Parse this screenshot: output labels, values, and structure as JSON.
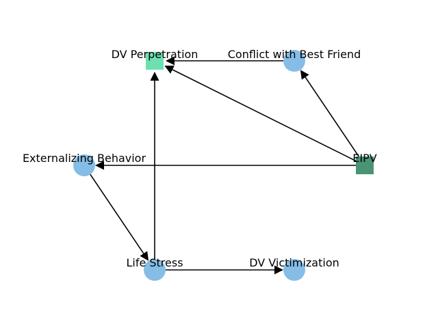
{
  "diagram": {
    "colors": {
      "circle_node": "#85bde6",
      "square_node_dv_perpetration": "#6ee0b0",
      "square_node_eipv": "#4a9475",
      "edge": "#000000",
      "label": "#000000"
    },
    "nodes": [
      {
        "id": "dv_perpetration",
        "label": "DV Perpetration",
        "shape": "square"
      },
      {
        "id": "conflict_best_friend",
        "label": "Conflict with Best Friend",
        "shape": "circle"
      },
      {
        "id": "externalizing_behavior",
        "label": "Externalizing Behavior",
        "shape": "circle"
      },
      {
        "id": "eipv",
        "label": "EIPV",
        "shape": "square"
      },
      {
        "id": "life_stress",
        "label": "Life Stress",
        "shape": "circle"
      },
      {
        "id": "dv_victimization",
        "label": "DV Victimization",
        "shape": "circle"
      }
    ],
    "edges": [
      {
        "from": "conflict_best_friend",
        "to": "dv_perpetration"
      },
      {
        "from": "eipv",
        "to": "dv_perpetration"
      },
      {
        "from": "eipv",
        "to": "conflict_best_friend"
      },
      {
        "from": "eipv",
        "to": "externalizing_behavior"
      },
      {
        "from": "externalizing_behavior",
        "to": "life_stress"
      },
      {
        "from": "life_stress",
        "to": "dv_perpetration"
      },
      {
        "from": "life_stress",
        "to": "dv_victimization"
      }
    ]
  }
}
